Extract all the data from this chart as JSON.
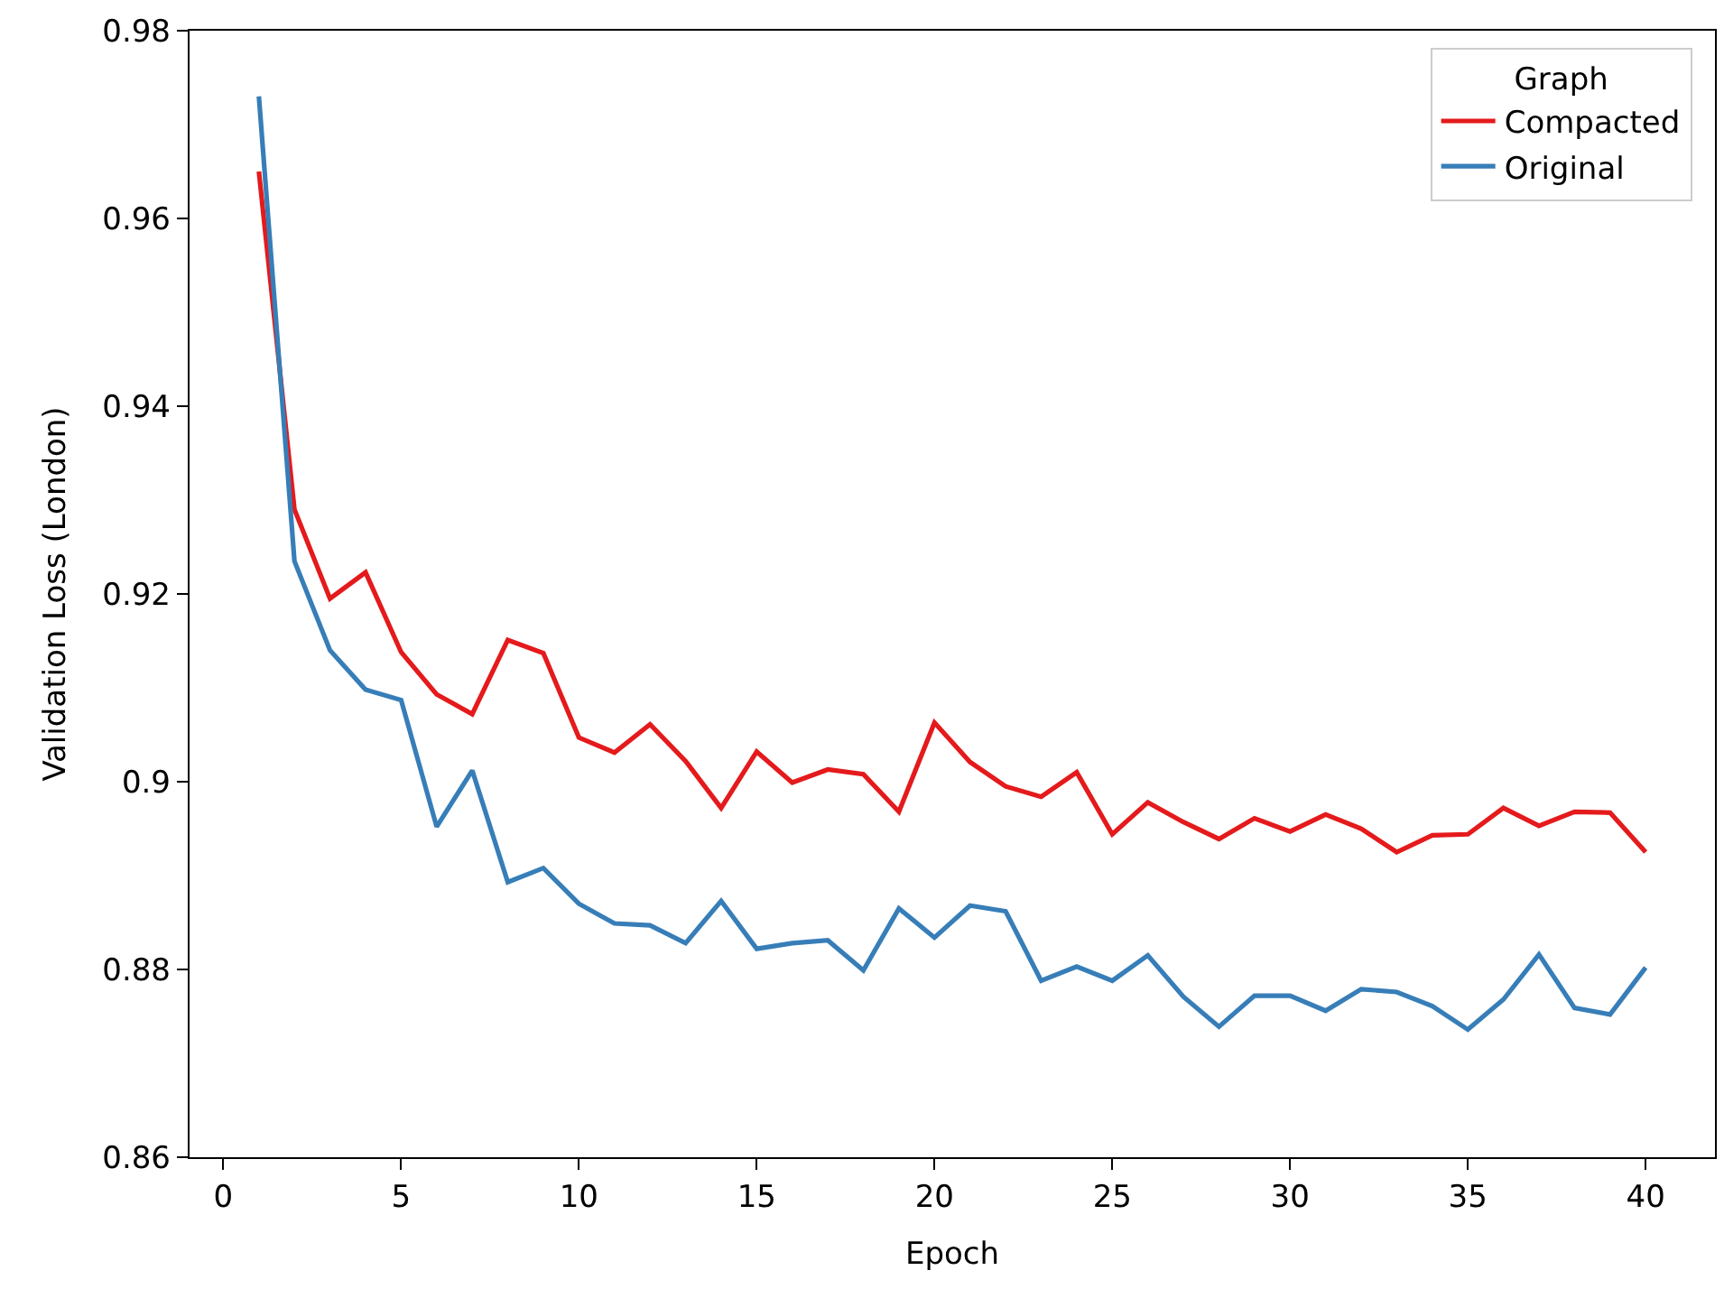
{
  "chart_data": {
    "type": "line",
    "xlabel": "Epoch",
    "ylabel": "Validation Loss (London)",
    "legend_title": "Graph",
    "legend": "top right",
    "marker": "none",
    "line_style": "solid",
    "x": [
      1,
      2,
      3,
      4,
      5,
      6,
      7,
      8,
      9,
      10,
      11,
      12,
      13,
      14,
      15,
      16,
      17,
      18,
      19,
      20,
      21,
      22,
      23,
      24,
      25,
      26,
      27,
      28,
      29,
      30,
      31,
      32,
      33,
      34,
      35,
      36,
      37,
      38,
      39,
      40
    ],
    "xlim": [
      -0.95,
      41.95
    ],
    "xticks": [
      0,
      5,
      10,
      15,
      20,
      25,
      30,
      35,
      40
    ],
    "ylim": [
      0.86,
      0.98
    ],
    "yticks": [
      0.86,
      0.88,
      0.9,
      0.92,
      0.94,
      0.96,
      0.98
    ],
    "series": [
      {
        "name": "Compacted",
        "color": "#e41a1c",
        "values": [
          0.965,
          0.929,
          0.9195,
          0.9223,
          0.9138,
          0.9093,
          0.9072,
          0.9151,
          0.9137,
          0.9047,
          0.9031,
          0.9061,
          0.9022,
          0.8972,
          0.9032,
          0.8999,
          0.9013,
          0.9008,
          0.8968,
          0.9063,
          0.9021,
          0.8995,
          0.8984,
          0.901,
          0.8944,
          0.8978,
          0.8957,
          0.8939,
          0.8961,
          0.8947,
          0.8965,
          0.895,
          0.8925,
          0.8943,
          0.8944,
          0.8972,
          0.8953,
          0.8968,
          0.8967,
          0.8925
        ]
      },
      {
        "name": "Original",
        "color": "#377eb8",
        "values": [
          0.973,
          0.9235,
          0.914,
          0.9098,
          0.9087,
          0.8952,
          0.9012,
          0.8893,
          0.8908,
          0.887,
          0.8849,
          0.8847,
          0.8828,
          0.8873,
          0.8822,
          0.8828,
          0.8831,
          0.8799,
          0.8865,
          0.8834,
          0.8868,
          0.8862,
          0.8788,
          0.8803,
          0.8788,
          0.8815,
          0.8771,
          0.8739,
          0.8772,
          0.8772,
          0.8756,
          0.8779,
          0.8776,
          0.8761,
          0.8736,
          0.8768,
          0.8816,
          0.8759,
          0.8752,
          0.8802
        ]
      }
    ]
  }
}
